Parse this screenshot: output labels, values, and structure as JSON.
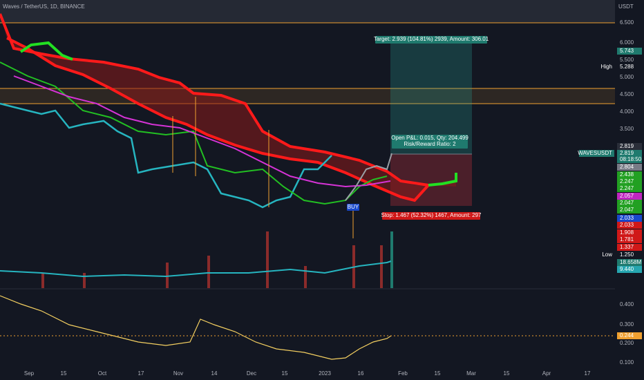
{
  "header": {
    "title": "Waves / TetherUS, 1D, BINANCE"
  },
  "price_axis": {
    "currency": "USDT",
    "ticks": [
      "6.500",
      "6.000",
      "5.500",
      "5.000",
      "4.500",
      "4.000",
      "3.500"
    ],
    "tags": [
      {
        "text": "5.743"
      },
      {
        "label": "High",
        "text": "5.288"
      },
      {
        "text": "2.819"
      },
      {
        "label": "WAVESUSDT",
        "text": "2.819"
      },
      {
        "text": "08:18:50"
      },
      {
        "text": "2.804"
      },
      {
        "text": "2.438"
      },
      {
        "text": "2.247"
      },
      {
        "text": "2.247"
      },
      {
        "text": "2.057"
      },
      {
        "text": "2.047"
      },
      {
        "text": "2.047"
      },
      {
        "text": "2.033"
      },
      {
        "text": "2.033"
      },
      {
        "text": "1.908"
      },
      {
        "text": "1.781"
      },
      {
        "text": "1.337"
      },
      {
        "label": "Low",
        "text": "1.250"
      },
      {
        "text": "18.658M"
      },
      {
        "text": "9.440"
      }
    ]
  },
  "indicator_axis": {
    "ticks": [
      "0.400",
      "0.300",
      "0.200",
      "0.100"
    ],
    "tag": "0.244"
  },
  "time_axis": {
    "labels": [
      "Sep",
      "15",
      "Oct",
      "17",
      "Nov",
      "14",
      "Dec",
      "15",
      "2023",
      "16",
      "Feb",
      "15",
      "Mar",
      "15",
      "Apr",
      "17"
    ]
  },
  "position": {
    "target": "Target: 2.939 (104.81%) 2939, Amount: 306.01",
    "open_pnl": "Open P&L: 0.015, Qty: 204.499",
    "risk_reward": "Risk/Reward Ratio: 2",
    "stop": "Stop: 1.467 (52.32%) 1467, Amount: 297",
    "signal": "BUY"
  }
}
